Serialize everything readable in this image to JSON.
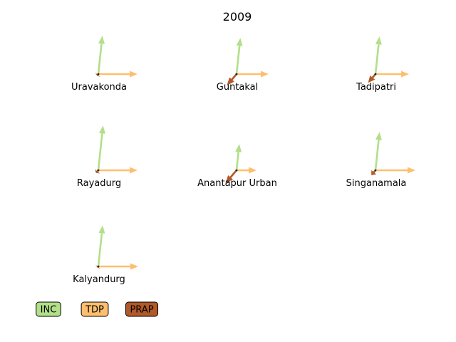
{
  "chart_data": {
    "type": "vector-glyph",
    "title": "2009",
    "parties": [
      {
        "name": "INC",
        "color": "#b2df8a"
      },
      {
        "name": "TDP",
        "color": "#fdbf6f"
      },
      {
        "name": "PRAP",
        "color": "#b15928"
      }
    ],
    "constituencies": [
      {
        "name": "Uravakonda",
        "INC": 0.54,
        "TDP": 0.55,
        "PRAP": 0.03
      },
      {
        "name": "Guntakal",
        "INC": 0.51,
        "TDP": 0.45,
        "PRAP": 0.21
      },
      {
        "name": "Tadipatri",
        "INC": 0.53,
        "TDP": 0.47,
        "PRAP": 0.16
      },
      {
        "name": "Rayadurg",
        "INC": 0.63,
        "TDP": 0.55,
        "PRAP": 0.05
      },
      {
        "name": "Anantapur Urban",
        "INC": 0.37,
        "TDP": 0.28,
        "PRAP": 0.24
      },
      {
        "name": "Singanamala",
        "INC": 0.54,
        "TDP": 0.56,
        "PRAP": 0.09
      },
      {
        "name": "Kalyandurg",
        "INC": 0.58,
        "TDP": 0.56,
        "PRAP": 0.02
      }
    ]
  }
}
